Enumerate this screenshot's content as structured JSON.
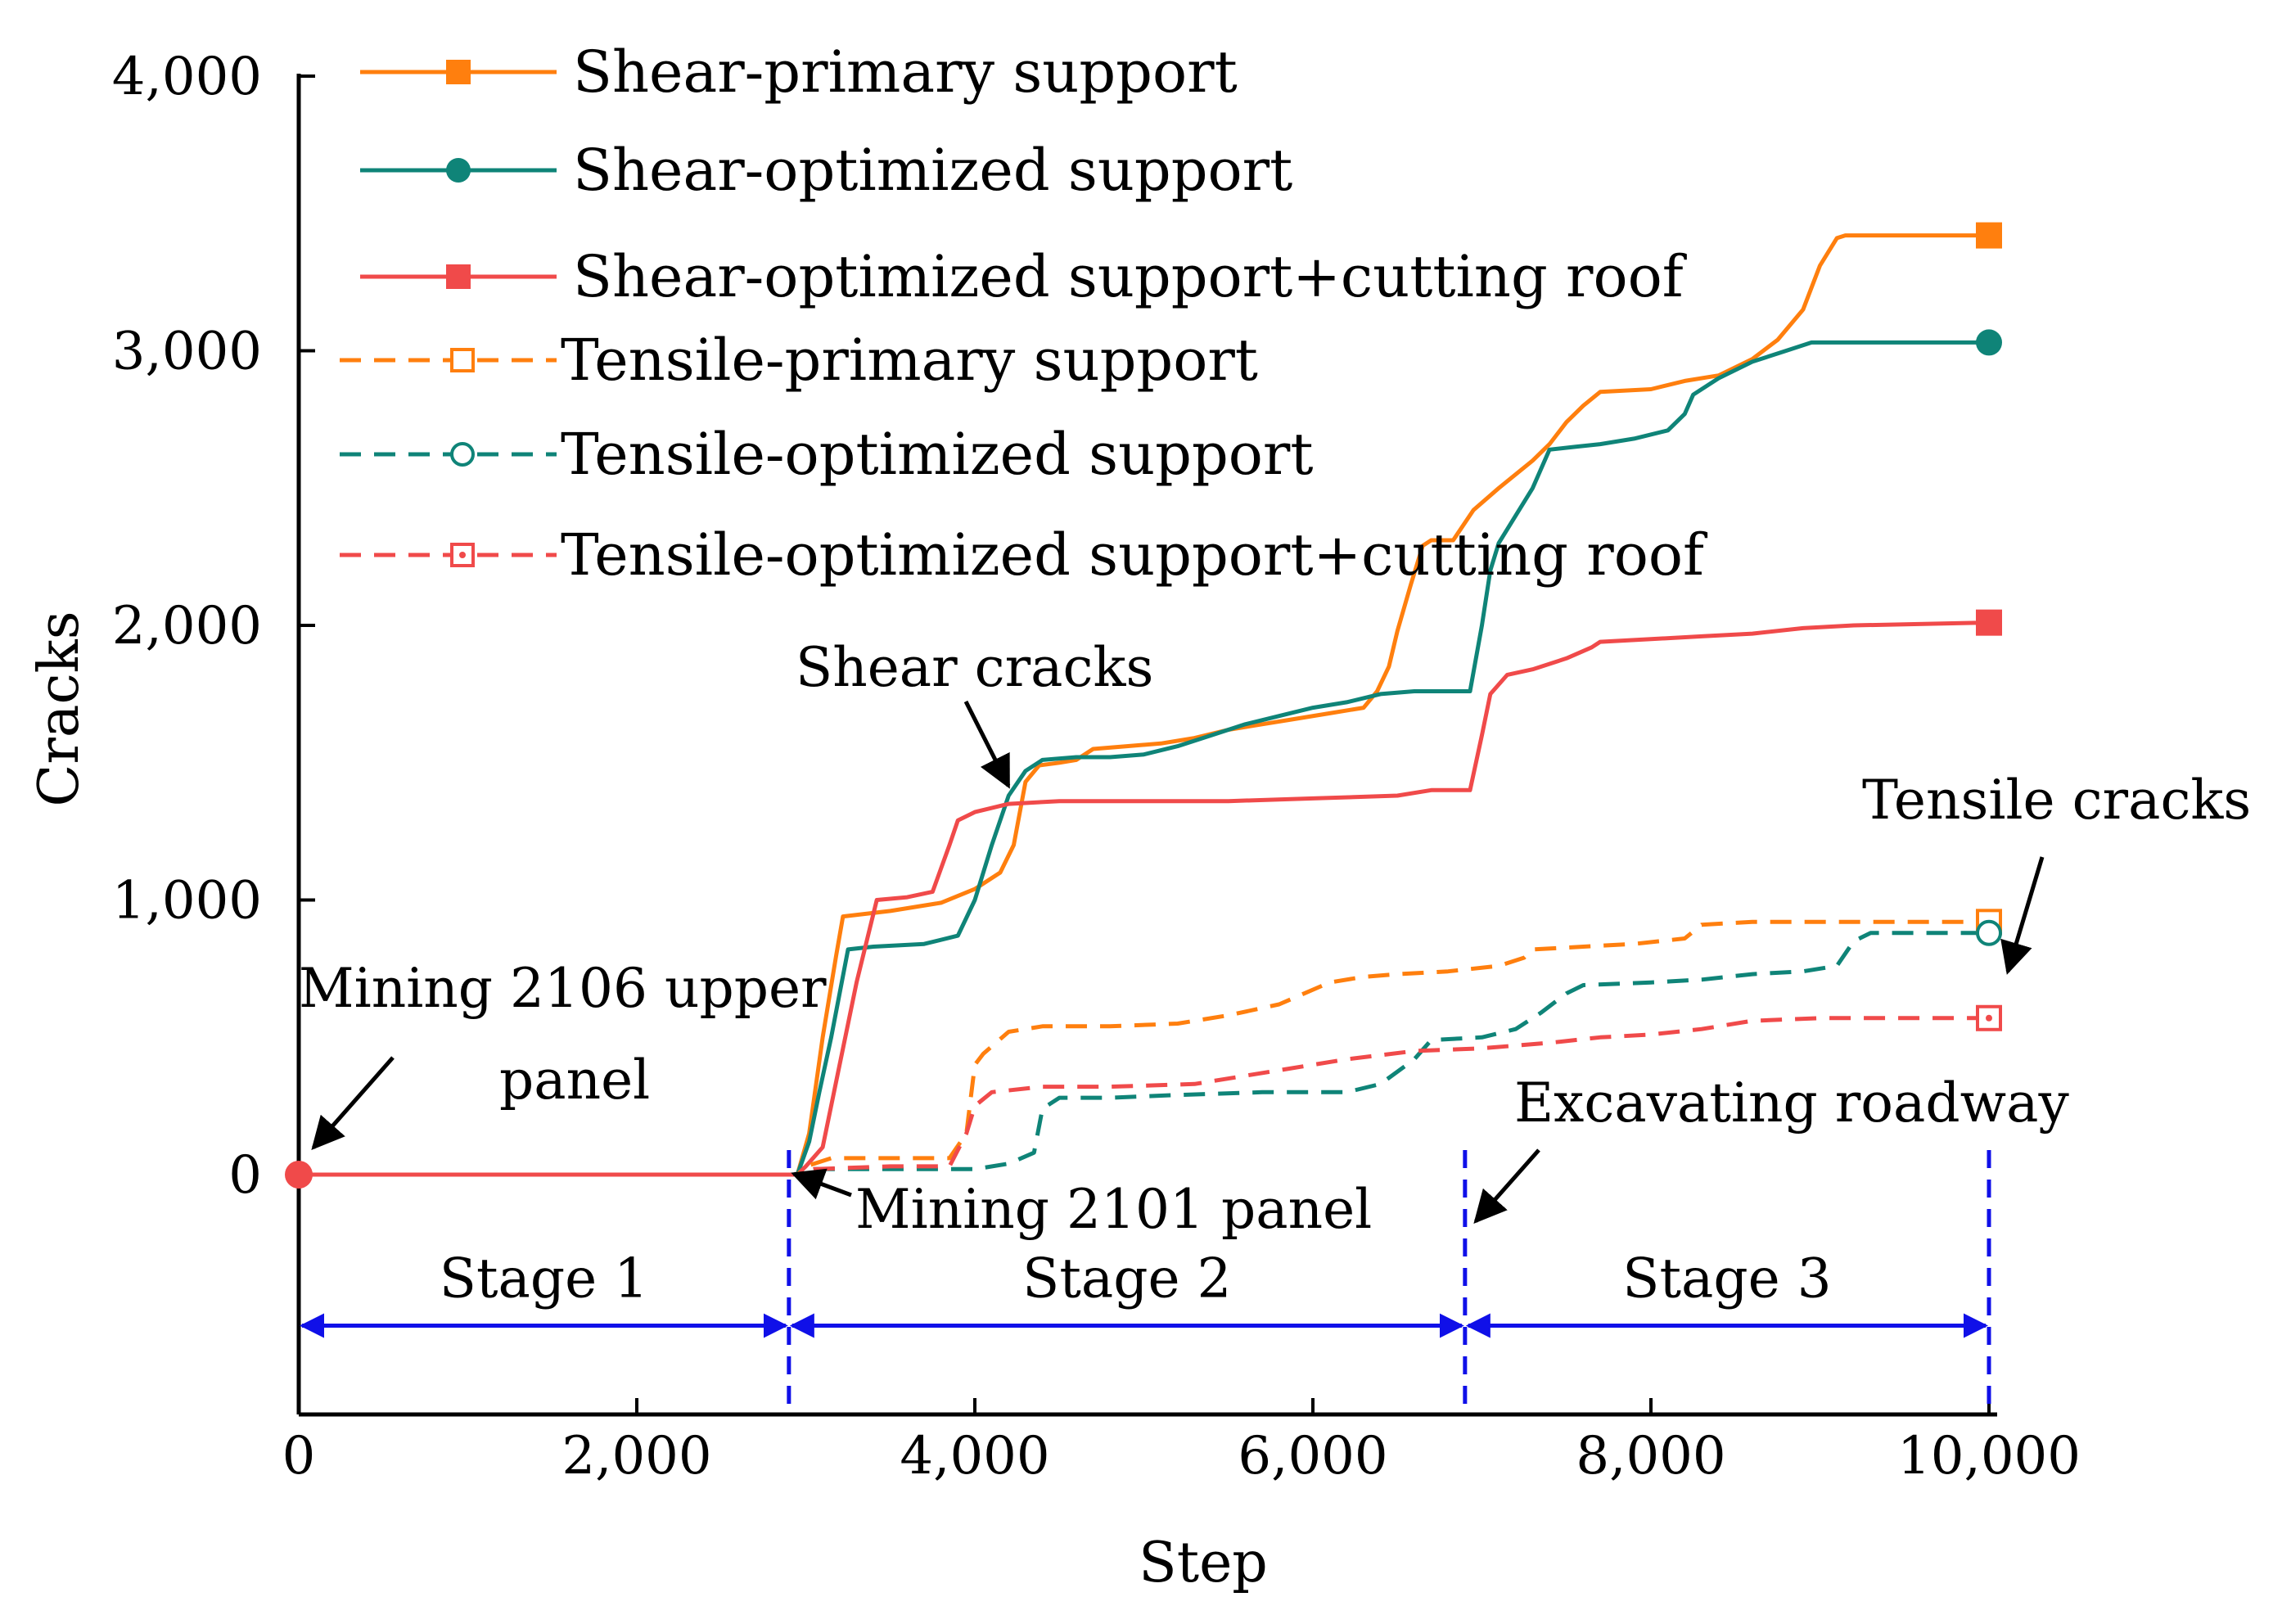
{
  "chart_data": {
    "type": "line",
    "title": "",
    "xlabel": "Step",
    "ylabel": "Cracks",
    "xlim": [
      0,
      10000
    ],
    "ylim": [
      -900,
      4000
    ],
    "x_ticks": [
      0,
      2000,
      4000,
      6000,
      8000,
      10000
    ],
    "x_tick_labels": [
      "0",
      "2,000",
      "4,000",
      "6,000",
      "8,000",
      "10,000"
    ],
    "y_ticks": [
      0,
      1000,
      2000,
      3000,
      4000
    ],
    "y_tick_labels": [
      "0",
      "1,000",
      "2,000",
      "3,000",
      "4,000"
    ],
    "grid": false,
    "legend_position": "top-left",
    "series": [
      {
        "name": "Shear-primary support",
        "color": "#ff7f0e",
        "line_style": "solid",
        "marker": "filled-square",
        "points": [
          [
            0,
            0
          ],
          [
            2950,
            0
          ],
          [
            3020,
            150
          ],
          [
            3100,
            500
          ],
          [
            3180,
            800
          ],
          [
            3220,
            940
          ],
          [
            3500,
            960
          ],
          [
            3800,
            990
          ],
          [
            4000,
            1040
          ],
          [
            4150,
            1100
          ],
          [
            4230,
            1200
          ],
          [
            4300,
            1430
          ],
          [
            4380,
            1490
          ],
          [
            4500,
            1500
          ],
          [
            4600,
            1510
          ],
          [
            4700,
            1550
          ],
          [
            4900,
            1560
          ],
          [
            5100,
            1570
          ],
          [
            5300,
            1590
          ],
          [
            5500,
            1620
          ],
          [
            5700,
            1640
          ],
          [
            5900,
            1660
          ],
          [
            6100,
            1680
          ],
          [
            6300,
            1700
          ],
          [
            6380,
            1760
          ],
          [
            6450,
            1850
          ],
          [
            6500,
            1980
          ],
          [
            6580,
            2150
          ],
          [
            6650,
            2290
          ],
          [
            6700,
            2310
          ],
          [
            6830,
            2310
          ],
          [
            6950,
            2420
          ],
          [
            7100,
            2500
          ],
          [
            7300,
            2600
          ],
          [
            7400,
            2660
          ],
          [
            7500,
            2740
          ],
          [
            7600,
            2800
          ],
          [
            7700,
            2850
          ],
          [
            8000,
            2860
          ],
          [
            8200,
            2890
          ],
          [
            8400,
            2910
          ],
          [
            8600,
            2970
          ],
          [
            8750,
            3040
          ],
          [
            8900,
            3150
          ],
          [
            9000,
            3310
          ],
          [
            9100,
            3410
          ],
          [
            9150,
            3420
          ],
          [
            10000,
            3420
          ]
        ]
      },
      {
        "name": "Shear-optimized support",
        "color": "#0f8478",
        "line_style": "solid",
        "marker": "filled-circle",
        "points": [
          [
            0,
            0
          ],
          [
            2950,
            0
          ],
          [
            3020,
            120
          ],
          [
            3080,
            300
          ],
          [
            3150,
            500
          ],
          [
            3250,
            820
          ],
          [
            3400,
            830
          ],
          [
            3700,
            840
          ],
          [
            3900,
            870
          ],
          [
            4000,
            1000
          ],
          [
            4100,
            1200
          ],
          [
            4200,
            1380
          ],
          [
            4300,
            1470
          ],
          [
            4400,
            1510
          ],
          [
            4600,
            1520
          ],
          [
            4800,
            1520
          ],
          [
            5000,
            1530
          ],
          [
            5200,
            1560
          ],
          [
            5400,
            1600
          ],
          [
            5600,
            1640
          ],
          [
            5800,
            1670
          ],
          [
            6000,
            1700
          ],
          [
            6200,
            1720
          ],
          [
            6400,
            1750
          ],
          [
            6600,
            1760
          ],
          [
            6700,
            1760
          ],
          [
            6930,
            1760
          ],
          [
            7000,
            2000
          ],
          [
            7050,
            2200
          ],
          [
            7100,
            2300
          ],
          [
            7300,
            2500
          ],
          [
            7400,
            2640
          ],
          [
            7550,
            2650
          ],
          [
            7700,
            2660
          ],
          [
            7900,
            2680
          ],
          [
            8100,
            2710
          ],
          [
            8200,
            2770
          ],
          [
            8250,
            2840
          ],
          [
            8400,
            2900
          ],
          [
            8600,
            2960
          ],
          [
            8800,
            3000
          ],
          [
            8950,
            3030
          ],
          [
            10000,
            3030
          ]
        ]
      },
      {
        "name": "Shear-optimized support+cutting roof",
        "color": "#f04a4a",
        "line_style": "solid",
        "marker": "filled-square",
        "points": [
          [
            0,
            0
          ],
          [
            2950,
            0
          ],
          [
            3000,
            30
          ],
          [
            3100,
            100
          ],
          [
            3200,
            400
          ],
          [
            3300,
            700
          ],
          [
            3420,
            1000
          ],
          [
            3600,
            1010
          ],
          [
            3750,
            1030
          ],
          [
            3850,
            1200
          ],
          [
            3900,
            1290
          ],
          [
            4000,
            1320
          ],
          [
            4200,
            1350
          ],
          [
            4500,
            1360
          ],
          [
            5000,
            1360
          ],
          [
            5500,
            1360
          ],
          [
            6000,
            1370
          ],
          [
            6500,
            1380
          ],
          [
            6700,
            1400
          ],
          [
            6930,
            1400
          ],
          [
            7000,
            1600
          ],
          [
            7050,
            1750
          ],
          [
            7150,
            1820
          ],
          [
            7300,
            1840
          ],
          [
            7500,
            1880
          ],
          [
            7650,
            1920
          ],
          [
            7700,
            1940
          ],
          [
            8000,
            1950
          ],
          [
            8300,
            1960
          ],
          [
            8600,
            1970
          ],
          [
            8900,
            1990
          ],
          [
            9200,
            2000
          ],
          [
            10000,
            2010
          ]
        ]
      },
      {
        "name": "Tensile-primary support",
        "color": "#ff7f0e",
        "line_style": "dashed",
        "marker": "open-square",
        "points": [
          [
            0,
            0
          ],
          [
            2950,
            0
          ],
          [
            3000,
            30
          ],
          [
            3150,
            60
          ],
          [
            3600,
            60
          ],
          [
            3850,
            60
          ],
          [
            3950,
            150
          ],
          [
            4000,
            400
          ],
          [
            4050,
            440
          ],
          [
            4200,
            520
          ],
          [
            4400,
            540
          ],
          [
            4800,
            540
          ],
          [
            5200,
            550
          ],
          [
            5500,
            580
          ],
          [
            5800,
            620
          ],
          [
            6100,
            700
          ],
          [
            6300,
            720
          ],
          [
            6500,
            730
          ],
          [
            6800,
            740
          ],
          [
            7100,
            760
          ],
          [
            7250,
            790
          ],
          [
            7300,
            820
          ],
          [
            7600,
            830
          ],
          [
            7900,
            840
          ],
          [
            8200,
            860
          ],
          [
            8300,
            910
          ],
          [
            8600,
            920
          ],
          [
            9000,
            920
          ],
          [
            10000,
            920
          ]
        ]
      },
      {
        "name": "Tensile-optimized support",
        "color": "#0f8478",
        "line_style": "dashed",
        "marker": "open-circle",
        "points": [
          [
            0,
            0
          ],
          [
            2950,
            0
          ],
          [
            3050,
            20
          ],
          [
            3500,
            20
          ],
          [
            4000,
            20
          ],
          [
            4200,
            40
          ],
          [
            4350,
            80
          ],
          [
            4400,
            240
          ],
          [
            4500,
            280
          ],
          [
            4800,
            280
          ],
          [
            5200,
            290
          ],
          [
            5700,
            300
          ],
          [
            6200,
            300
          ],
          [
            6400,
            330
          ],
          [
            6600,
            420
          ],
          [
            6700,
            490
          ],
          [
            7000,
            500
          ],
          [
            7200,
            530
          ],
          [
            7350,
            590
          ],
          [
            7500,
            660
          ],
          [
            7600,
            690
          ],
          [
            8000,
            700
          ],
          [
            8300,
            710
          ],
          [
            8600,
            730
          ],
          [
            8900,
            740
          ],
          [
            9100,
            760
          ],
          [
            9200,
            850
          ],
          [
            9300,
            880
          ],
          [
            10000,
            880
          ]
        ]
      },
      {
        "name": "Tensile-optimized support+cutting roof",
        "color": "#f04a4a",
        "line_style": "dashed",
        "marker": "open-square-dot",
        "points": [
          [
            0,
            0
          ],
          [
            2950,
            0
          ],
          [
            3050,
            20
          ],
          [
            3500,
            30
          ],
          [
            3850,
            30
          ],
          [
            3950,
            150
          ],
          [
            4000,
            250
          ],
          [
            4100,
            300
          ],
          [
            4400,
            320
          ],
          [
            4800,
            320
          ],
          [
            5300,
            330
          ],
          [
            5800,
            380
          ],
          [
            6200,
            420
          ],
          [
            6600,
            450
          ],
          [
            7000,
            460
          ],
          [
            7400,
            480
          ],
          [
            7700,
            500
          ],
          [
            8000,
            510
          ],
          [
            8300,
            530
          ],
          [
            8600,
            560
          ],
          [
            9000,
            570
          ],
          [
            10000,
            570
          ]
        ]
      }
    ],
    "end_markers": [
      {
        "series": 0,
        "x": 10000,
        "y": 3420
      },
      {
        "series": 1,
        "x": 10000,
        "y": 3030
      },
      {
        "series": 2,
        "x": 10000,
        "y": 2010
      },
      {
        "series": 3,
        "x": 10000,
        "y": 920
      },
      {
        "series": 4,
        "x": 10000,
        "y": 880
      },
      {
        "series": 5,
        "x": 10000,
        "y": 570
      }
    ],
    "start_marker": {
      "x": 0,
      "y": 0,
      "color": "#f04a4a"
    },
    "stage_dividers": [
      2900,
      6900,
      10000
    ],
    "stage_arrow_y": -550,
    "stages": [
      {
        "label": "Stage 1",
        "from": 0,
        "to": 2900
      },
      {
        "label": "Stage 2",
        "from": 2900,
        "to": 6900
      },
      {
        "label": "Stage 3",
        "from": 6900,
        "to": 10000
      }
    ],
    "stage_color": "#1010e8",
    "annotations": {
      "mining_2106": [
        "Mining 2106 upper",
        "panel"
      ],
      "mining_2101": "Mining 2101 panel",
      "excavating": "Excavating roadway",
      "shear_cracks": "Shear cracks",
      "tensile_cracks": "Tensile cracks"
    }
  }
}
